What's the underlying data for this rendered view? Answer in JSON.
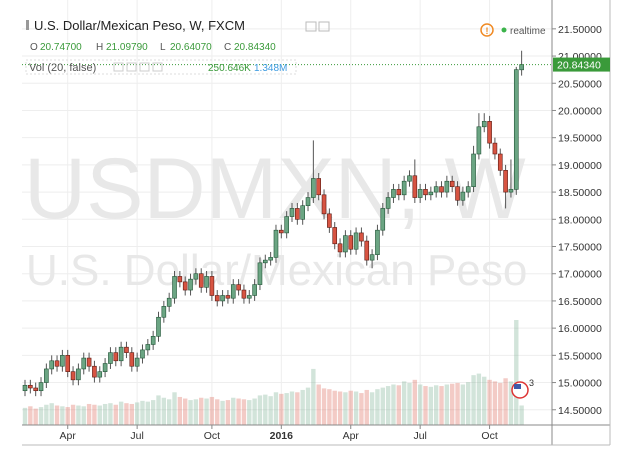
{
  "chart_data": {
    "type": "candlestick",
    "title": "U.S. Dollar/Mexican Peso, W, FXCM",
    "legend_items": [
      {
        "key": "O",
        "value": "20.74700"
      },
      {
        "key": "H",
        "value": "21.09790"
      },
      {
        "key": "L",
        "value": "20.64070"
      },
      {
        "key": "C",
        "value": "20.84340"
      }
    ],
    "volume_title": "Vol (20, false)",
    "volume_labels": [
      "250.646K",
      "1.348M"
    ],
    "status": "realtime",
    "watermark": [
      "USDMXN, W",
      "U.S. Dollar/Mexican Peso"
    ],
    "last_price_label": "20.84340",
    "events_count": "3",
    "up_color": "#6ba583",
    "down_color": "#d75442",
    "grid": true,
    "categories": [
      null,
      null,
      null,
      null,
      null,
      null,
      null,
      null,
      "Apr",
      null,
      null,
      null,
      null,
      null,
      null,
      null,
      null,
      null,
      null,
      null,
      null,
      "Jul",
      null,
      null,
      null,
      null,
      null,
      null,
      null,
      null,
      null,
      null,
      null,
      null,
      null,
      "Oct",
      null,
      null,
      null,
      null,
      null,
      null,
      null,
      null,
      null,
      null,
      null,
      null,
      "2016",
      null,
      null,
      null,
      null,
      null,
      null,
      null,
      null,
      null,
      null,
      null,
      null,
      "Apr",
      null,
      null,
      null,
      null,
      null,
      null,
      null,
      null,
      null,
      null,
      null,
      null,
      "Jul",
      null,
      null,
      null,
      null,
      null,
      null,
      null,
      null,
      null,
      null,
      null,
      null,
      "Oct",
      null,
      null,
      null,
      null,
      null,
      null
    ],
    "open": [
      14.85,
      14.95,
      14.9,
      14.85,
      15.0,
      15.25,
      15.4,
      15.3,
      15.5,
      15.2,
      15.05,
      15.25,
      15.45,
      15.3,
      15.1,
      15.2,
      15.35,
      15.55,
      15.4,
      15.65,
      15.55,
      15.3,
      15.45,
      15.6,
      15.7,
      15.85,
      16.2,
      16.4,
      16.55,
      16.95,
      16.85,
      16.7,
      16.9,
      17.0,
      16.75,
      16.95,
      16.6,
      16.5,
      16.6,
      16.55,
      16.8,
      16.7,
      16.55,
      16.6,
      16.8,
      17.2,
      17.25,
      17.3,
      17.8,
      17.75,
      18.05,
      18.2,
      18.0,
      18.25,
      18.4,
      18.75,
      18.45,
      18.1,
      17.85,
      17.55,
      17.4,
      17.7,
      17.45,
      17.75,
      17.6,
      17.25,
      17.35,
      17.8,
      18.2,
      18.4,
      18.55,
      18.45,
      18.7,
      18.8,
      18.4,
      18.55,
      18.45,
      18.5,
      18.6,
      18.5,
      18.7,
      18.6,
      18.35,
      18.5,
      18.6,
      19.2,
      19.7,
      19.8,
      19.4,
      19.2,
      18.9,
      18.5,
      18.55,
      20.747
    ],
    "high": [
      15.05,
      15.05,
      15.0,
      15.1,
      15.35,
      15.5,
      15.5,
      15.6,
      15.6,
      15.3,
      15.35,
      15.55,
      15.55,
      15.4,
      15.3,
      15.45,
      15.65,
      15.65,
      15.75,
      15.75,
      15.65,
      15.55,
      15.7,
      15.8,
      15.95,
      16.3,
      16.5,
      16.65,
      17.05,
      17.05,
      16.95,
      17.0,
      17.1,
      17.1,
      17.05,
      17.05,
      16.7,
      16.7,
      16.7,
      16.9,
      16.9,
      16.8,
      16.7,
      16.9,
      17.3,
      17.35,
      17.4,
      17.9,
      17.9,
      18.15,
      18.3,
      18.3,
      18.35,
      18.5,
      19.45,
      18.85,
      18.55,
      18.2,
      17.95,
      17.65,
      17.8,
      17.8,
      17.85,
      17.85,
      17.7,
      17.45,
      17.9,
      18.3,
      18.5,
      18.65,
      18.65,
      18.8,
      18.9,
      19.1,
      18.65,
      18.65,
      18.6,
      18.7,
      18.7,
      18.8,
      18.8,
      18.7,
      18.6,
      18.7,
      19.35,
      19.95,
      19.95,
      19.9,
      19.5,
      19.3,
      19.0,
      19.1,
      20.8,
      21.0979
    ],
    "low": [
      14.75,
      14.8,
      14.75,
      14.75,
      14.9,
      15.15,
      15.2,
      15.2,
      15.1,
      14.95,
      14.95,
      15.15,
      15.2,
      15.0,
      15.0,
      15.1,
      15.25,
      15.3,
      15.3,
      15.45,
      15.2,
      15.2,
      15.35,
      15.5,
      15.6,
      15.75,
      16.1,
      16.3,
      16.45,
      16.75,
      16.6,
      16.6,
      16.8,
      16.65,
      16.65,
      16.5,
      16.4,
      16.4,
      16.45,
      16.45,
      16.6,
      16.45,
      16.45,
      16.5,
      16.7,
      17.1,
      17.15,
      17.2,
      17.65,
      17.65,
      17.95,
      17.9,
      17.9,
      18.15,
      18.3,
      18.35,
      18.0,
      17.75,
      17.45,
      17.3,
      17.3,
      17.35,
      17.35,
      17.5,
      17.15,
      17.1,
      17.25,
      17.7,
      18.1,
      18.3,
      18.35,
      18.35,
      18.6,
      18.3,
      18.3,
      18.35,
      18.35,
      18.4,
      18.4,
      18.4,
      18.5,
      18.25,
      18.25,
      18.4,
      18.5,
      19.1,
      19.6,
      19.3,
      19.1,
      18.8,
      18.2,
      18.4,
      18.45,
      20.6407
    ],
    "close": [
      14.95,
      14.9,
      14.85,
      15.0,
      15.25,
      15.4,
      15.3,
      15.5,
      15.2,
      15.05,
      15.25,
      15.45,
      15.3,
      15.1,
      15.2,
      15.35,
      15.55,
      15.4,
      15.65,
      15.55,
      15.3,
      15.45,
      15.6,
      15.7,
      15.85,
      16.2,
      16.4,
      16.55,
      16.95,
      16.85,
      16.7,
      16.9,
      17.0,
      16.75,
      16.95,
      16.6,
      16.5,
      16.6,
      16.55,
      16.8,
      16.7,
      16.55,
      16.6,
      16.8,
      17.2,
      17.25,
      17.3,
      17.8,
      17.75,
      18.05,
      18.2,
      18.0,
      18.25,
      18.4,
      18.75,
      18.45,
      18.1,
      17.85,
      17.55,
      17.4,
      17.7,
      17.45,
      17.75,
      17.6,
      17.25,
      17.35,
      17.8,
      18.2,
      18.4,
      18.55,
      18.45,
      18.7,
      18.8,
      18.4,
      18.55,
      18.45,
      18.5,
      18.6,
      18.5,
      18.7,
      18.6,
      18.35,
      18.5,
      18.6,
      19.2,
      19.7,
      19.8,
      19.4,
      19.2,
      18.9,
      18.5,
      18.55,
      20.75,
      20.8434
    ],
    "volume": [
      220000,
      240000,
      210000,
      230000,
      260000,
      280000,
      250000,
      240000,
      230000,
      260000,
      250000,
      240000,
      270000,
      260000,
      250000,
      270000,
      280000,
      260000,
      300000,
      280000,
      270000,
      290000,
      310000,
      300000,
      320000,
      380000,
      350000,
      330000,
      420000,
      360000,
      340000,
      320000,
      330000,
      350000,
      340000,
      360000,
      330000,
      310000,
      320000,
      350000,
      340000,
      330000,
      320000,
      340000,
      380000,
      390000,
      370000,
      420000,
      400000,
      410000,
      430000,
      420000,
      450000,
      480000,
      720000,
      520000,
      470000,
      460000,
      440000,
      430000,
      420000,
      440000,
      430000,
      410000,
      450000,
      420000,
      460000,
      480000,
      500000,
      520000,
      510000,
      560000,
      540000,
      580000,
      520000,
      500000,
      490000,
      510000,
      500000,
      520000,
      530000,
      540000,
      520000,
      550000,
      640000,
      660000,
      620000,
      580000,
      560000,
      540000,
      600000,
      560000,
      1348000,
      250646
    ],
    "ylim": [
      14.22,
      22.03
    ],
    "yticks": [
      {
        "value": 14.5,
        "label": "14.50000"
      },
      {
        "value": 15,
        "label": "15.00000"
      },
      {
        "value": 15.5,
        "label": "15.50000"
      },
      {
        "value": 16,
        "label": "16.00000"
      },
      {
        "value": 16.5,
        "label": "16.50000"
      },
      {
        "value": 17,
        "label": "17.00000"
      },
      {
        "value": 17.5,
        "label": "17.50000"
      },
      {
        "value": 18,
        "label": "18.00000"
      },
      {
        "value": 18.5,
        "label": "18.50000"
      },
      {
        "value": 19,
        "label": "19.00000"
      },
      {
        "value": 19.5,
        "label": "19.50000"
      },
      {
        "value": 20,
        "label": "20.00000"
      },
      {
        "value": 20.5,
        "label": "20.50000"
      },
      {
        "value": 21,
        "label": "21.00000"
      },
      {
        "value": 21.5,
        "label": "21.50000"
      }
    ]
  }
}
